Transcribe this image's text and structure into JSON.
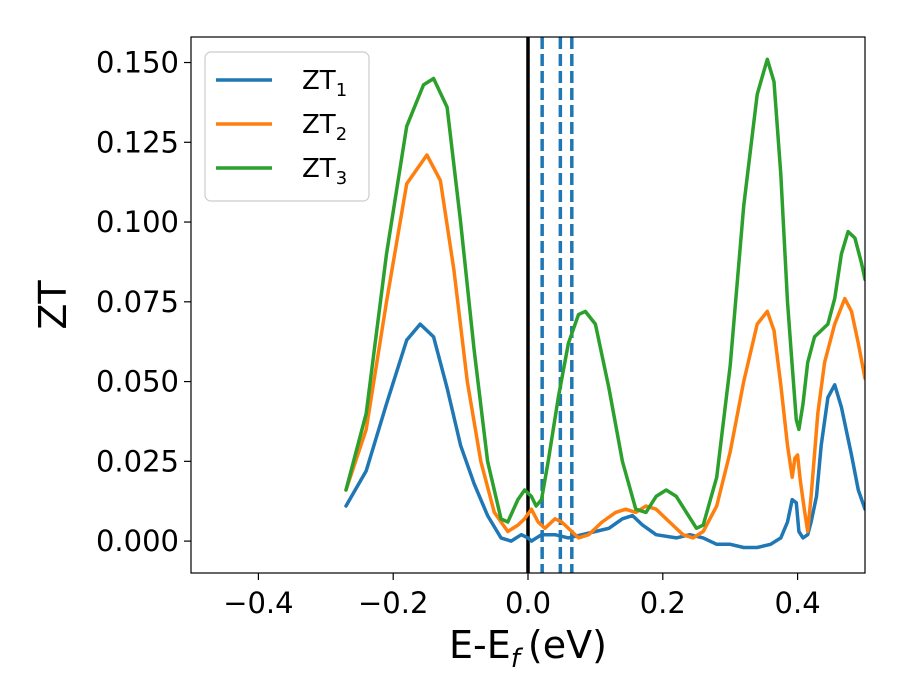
{
  "chart_data": {
    "type": "line",
    "xlabel": "E-E",
    "xlabel_sub": "f",
    "xlabel_unit": "(eV)",
    "ylabel": "ZT",
    "xlim": [
      -0.5,
      0.5
    ],
    "ylim": [
      -0.01,
      0.158
    ],
    "x_ticks": [
      -0.4,
      -0.2,
      0.0,
      0.2,
      0.4
    ],
    "x_tick_labels": [
      "−0.4",
      "−0.2",
      "0.0",
      "0.2",
      "0.4"
    ],
    "y_ticks": [
      0.0,
      0.025,
      0.05,
      0.075,
      0.1,
      0.125,
      0.15
    ],
    "y_tick_labels": [
      "0.000",
      "0.025",
      "0.050",
      "0.075",
      "0.100",
      "0.125",
      "0.150"
    ],
    "grid": false,
    "legend_position": "top-left",
    "vertical_lines": [
      {
        "x": 0.0,
        "style": "solid",
        "color": "#000000"
      },
      {
        "x": 0.021,
        "style": "dashed",
        "color": "#1f77b4"
      },
      {
        "x": 0.048,
        "style": "dashed",
        "color": "#1f77b4"
      },
      {
        "x": 0.065,
        "style": "dashed",
        "color": "#1f77b4"
      }
    ],
    "series": [
      {
        "name": "ZT",
        "subscript": "1",
        "color": "#1f77b4",
        "points": [
          [
            -0.27,
            0.011
          ],
          [
            -0.24,
            0.022
          ],
          [
            -0.21,
            0.043
          ],
          [
            -0.18,
            0.063
          ],
          [
            -0.16,
            0.068
          ],
          [
            -0.14,
            0.064
          ],
          [
            -0.12,
            0.048
          ],
          [
            -0.1,
            0.03
          ],
          [
            -0.08,
            0.018
          ],
          [
            -0.06,
            0.008
          ],
          [
            -0.04,
            0.001
          ],
          [
            -0.025,
            0.0
          ],
          [
            -0.01,
            0.002
          ],
          [
            0.0,
            0.001
          ],
          [
            0.005,
            0.0
          ],
          [
            0.02,
            0.002
          ],
          [
            0.04,
            0.002
          ],
          [
            0.06,
            0.001
          ],
          [
            0.08,
            0.002
          ],
          [
            0.1,
            0.003
          ],
          [
            0.12,
            0.004
          ],
          [
            0.14,
            0.007
          ],
          [
            0.155,
            0.008
          ],
          [
            0.17,
            0.005
          ],
          [
            0.19,
            0.002
          ],
          [
            0.22,
            0.001
          ],
          [
            0.24,
            0.002
          ],
          [
            0.26,
            0.001
          ],
          [
            0.28,
            -0.001
          ],
          [
            0.3,
            -0.001
          ],
          [
            0.32,
            -0.002
          ],
          [
            0.34,
            -0.002
          ],
          [
            0.36,
            -0.001
          ],
          [
            0.375,
            0.001
          ],
          [
            0.385,
            0.006
          ],
          [
            0.392,
            0.013
          ],
          [
            0.398,
            0.012
          ],
          [
            0.402,
            0.003
          ],
          [
            0.408,
            0.001
          ],
          [
            0.415,
            0.002
          ],
          [
            0.42,
            0.006
          ],
          [
            0.428,
            0.014
          ],
          [
            0.435,
            0.03
          ],
          [
            0.445,
            0.045
          ],
          [
            0.455,
            0.049
          ],
          [
            0.465,
            0.042
          ],
          [
            0.48,
            0.027
          ],
          [
            0.49,
            0.016
          ],
          [
            0.5,
            0.01
          ]
        ]
      },
      {
        "name": "ZT",
        "subscript": "2",
        "color": "#ff7f0e",
        "points": [
          [
            -0.27,
            0.016
          ],
          [
            -0.24,
            0.035
          ],
          [
            -0.21,
            0.075
          ],
          [
            -0.18,
            0.112
          ],
          [
            -0.15,
            0.121
          ],
          [
            -0.13,
            0.113
          ],
          [
            -0.11,
            0.085
          ],
          [
            -0.09,
            0.05
          ],
          [
            -0.07,
            0.025
          ],
          [
            -0.05,
            0.009
          ],
          [
            -0.03,
            0.003
          ],
          [
            -0.015,
            0.005
          ],
          [
            -0.005,
            0.007
          ],
          [
            0.005,
            0.01
          ],
          [
            0.015,
            0.006
          ],
          [
            0.025,
            0.004
          ],
          [
            0.04,
            0.007
          ],
          [
            0.05,
            0.006
          ],
          [
            0.06,
            0.004
          ],
          [
            0.075,
            0.001
          ],
          [
            0.09,
            0.002
          ],
          [
            0.11,
            0.006
          ],
          [
            0.13,
            0.009
          ],
          [
            0.145,
            0.01
          ],
          [
            0.16,
            0.009
          ],
          [
            0.175,
            0.011
          ],
          [
            0.19,
            0.01
          ],
          [
            0.21,
            0.006
          ],
          [
            0.23,
            0.002
          ],
          [
            0.245,
            0.001
          ],
          [
            0.26,
            0.003
          ],
          [
            0.28,
            0.011
          ],
          [
            0.3,
            0.028
          ],
          [
            0.32,
            0.05
          ],
          [
            0.34,
            0.068
          ],
          [
            0.355,
            0.072
          ],
          [
            0.365,
            0.066
          ],
          [
            0.375,
            0.049
          ],
          [
            0.385,
            0.03
          ],
          [
            0.392,
            0.02
          ],
          [
            0.396,
            0.026
          ],
          [
            0.4,
            0.027
          ],
          [
            0.404,
            0.019
          ],
          [
            0.41,
            0.01
          ],
          [
            0.415,
            0.003
          ],
          [
            0.42,
            0.014
          ],
          [
            0.43,
            0.04
          ],
          [
            0.44,
            0.056
          ],
          [
            0.455,
            0.068
          ],
          [
            0.47,
            0.076
          ],
          [
            0.48,
            0.072
          ],
          [
            0.49,
            0.062
          ],
          [
            0.5,
            0.051
          ]
        ]
      },
      {
        "name": "ZT",
        "subscript": "3",
        "color": "#2ca02c",
        "points": [
          [
            -0.27,
            0.016
          ],
          [
            -0.24,
            0.04
          ],
          [
            -0.21,
            0.09
          ],
          [
            -0.18,
            0.13
          ],
          [
            -0.155,
            0.143
          ],
          [
            -0.14,
            0.145
          ],
          [
            -0.12,
            0.136
          ],
          [
            -0.1,
            0.1
          ],
          [
            -0.08,
            0.06
          ],
          [
            -0.06,
            0.025
          ],
          [
            -0.04,
            0.007
          ],
          [
            -0.03,
            0.006
          ],
          [
            -0.015,
            0.013
          ],
          [
            -0.005,
            0.016
          ],
          [
            0.005,
            0.014
          ],
          [
            0.012,
            0.011
          ],
          [
            0.02,
            0.013
          ],
          [
            0.03,
            0.025
          ],
          [
            0.045,
            0.045
          ],
          [
            0.06,
            0.062
          ],
          [
            0.075,
            0.071
          ],
          [
            0.085,
            0.072
          ],
          [
            0.1,
            0.068
          ],
          [
            0.12,
            0.048
          ],
          [
            0.14,
            0.025
          ],
          [
            0.16,
            0.01
          ],
          [
            0.175,
            0.009
          ],
          [
            0.19,
            0.014
          ],
          [
            0.205,
            0.016
          ],
          [
            0.22,
            0.014
          ],
          [
            0.235,
            0.009
          ],
          [
            0.25,
            0.004
          ],
          [
            0.26,
            0.005
          ],
          [
            0.28,
            0.02
          ],
          [
            0.3,
            0.055
          ],
          [
            0.32,
            0.105
          ],
          [
            0.34,
            0.14
          ],
          [
            0.355,
            0.151
          ],
          [
            0.365,
            0.144
          ],
          [
            0.375,
            0.115
          ],
          [
            0.385,
            0.075
          ],
          [
            0.392,
            0.055
          ],
          [
            0.398,
            0.038
          ],
          [
            0.402,
            0.035
          ],
          [
            0.408,
            0.043
          ],
          [
            0.415,
            0.056
          ],
          [
            0.425,
            0.064
          ],
          [
            0.435,
            0.066
          ],
          [
            0.445,
            0.068
          ],
          [
            0.455,
            0.076
          ],
          [
            0.465,
            0.09
          ],
          [
            0.475,
            0.097
          ],
          [
            0.485,
            0.095
          ],
          [
            0.495,
            0.087
          ],
          [
            0.5,
            0.082
          ]
        ]
      }
    ]
  }
}
